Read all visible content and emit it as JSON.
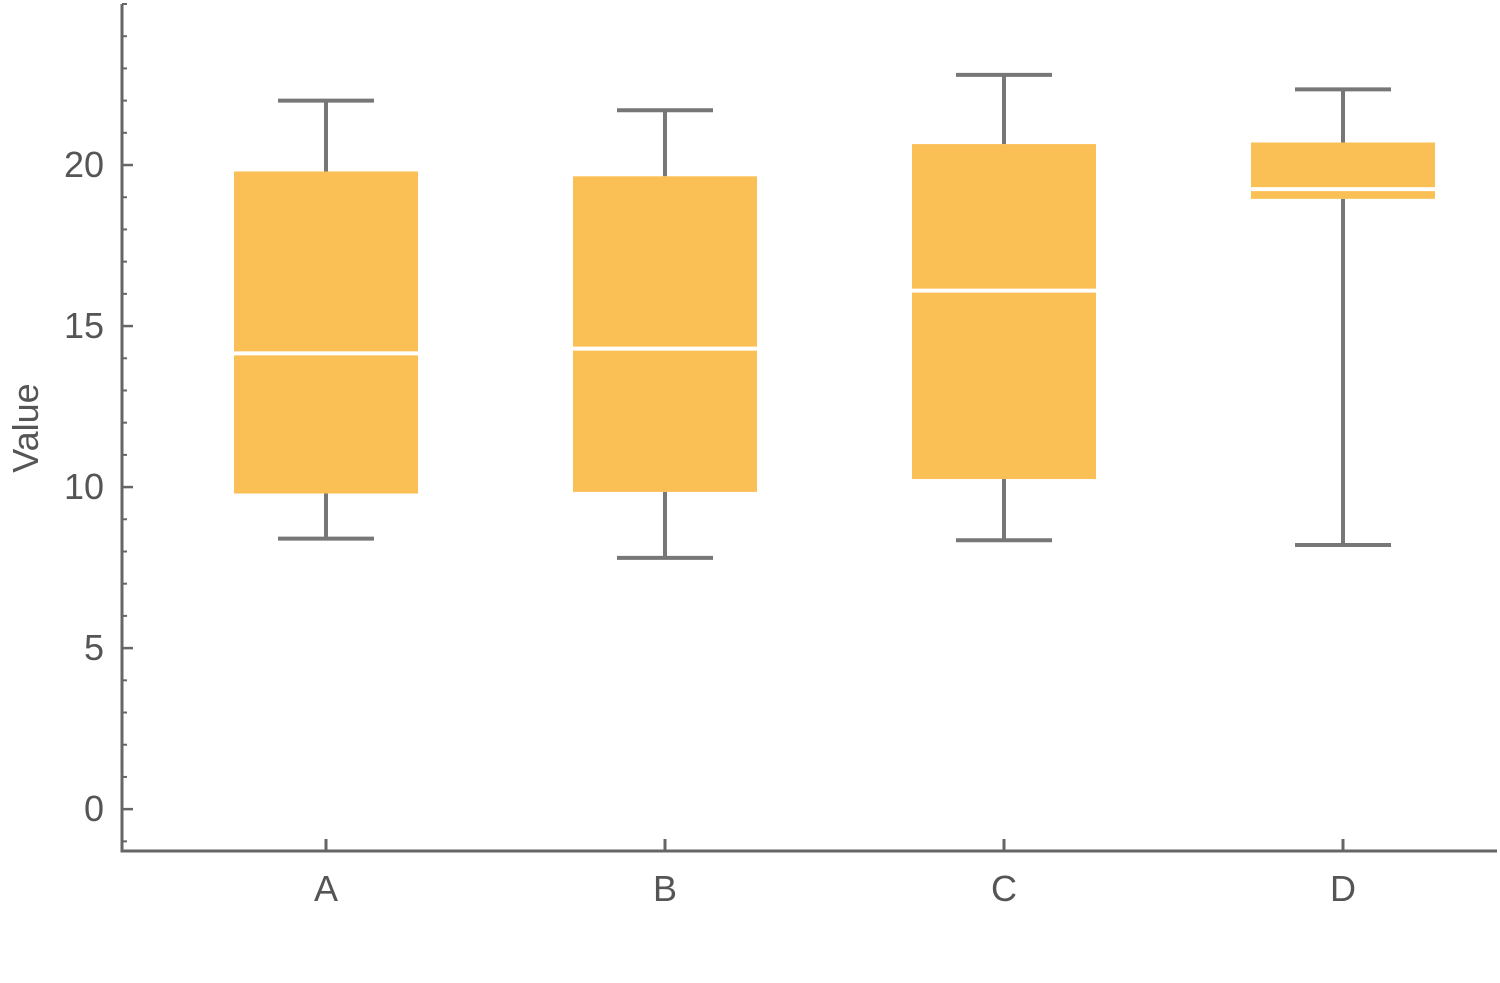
{
  "chart_data": {
    "type": "box",
    "title": "",
    "xlabel": "",
    "ylabel": "Value",
    "ylim": [
      -1.3,
      25
    ],
    "yticks": [
      0,
      5,
      10,
      15,
      20
    ],
    "ytick_labels": [
      "0",
      "5",
      "10",
      "15",
      "20"
    ],
    "grid": false,
    "colors": {
      "box_fill": "#FAC055",
      "median": "#FFFFFF",
      "whisker": "#777777",
      "axis": "#666666",
      "text": "#555555"
    },
    "categories": [
      "A",
      "B",
      "C",
      "D"
    ],
    "boxes": [
      {
        "category": "A",
        "whisker_low": 8.4,
        "q1": 9.8,
        "median": 14.15,
        "q3": 19.8,
        "whisker_high": 22.0
      },
      {
        "category": "B",
        "whisker_low": 7.8,
        "q1": 9.85,
        "median": 14.3,
        "q3": 19.65,
        "whisker_high": 21.7
      },
      {
        "category": "C",
        "whisker_low": 8.35,
        "q1": 10.25,
        "median": 16.1,
        "q3": 20.65,
        "whisker_high": 22.8
      },
      {
        "category": "D",
        "whisker_low": 8.2,
        "q1": 18.95,
        "median": 19.25,
        "q3": 20.7,
        "whisker_high": 22.35
      }
    ]
  }
}
